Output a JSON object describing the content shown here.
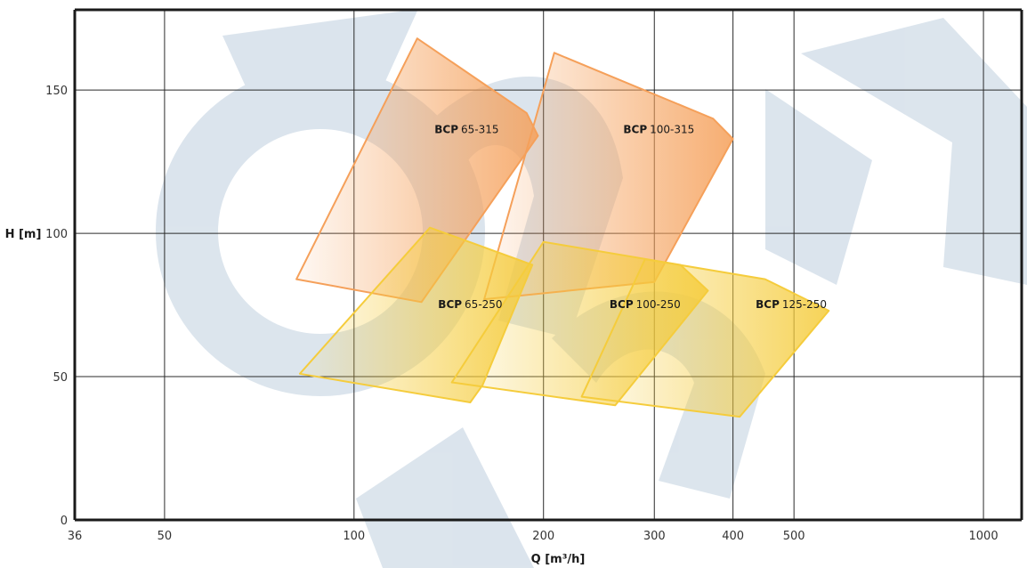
{
  "chart_data": {
    "type": "area",
    "title": "",
    "xlabel": "Q [m³/h]",
    "ylabel": "H [m]",
    "x_scale": "log",
    "xlim": [
      36,
      1150
    ],
    "ylim": [
      0,
      178
    ],
    "x_ticks": [
      36,
      50,
      100,
      200,
      300,
      400,
      500,
      1000
    ],
    "y_ticks": [
      0,
      50,
      100,
      150
    ],
    "grid": true,
    "series": [
      {
        "name": "BCP 65-315",
        "brand": "BCP",
        "model": "65-315",
        "color": "#f5a05a",
        "label_at": [
          151,
          135
        ],
        "polygon": [
          [
            81,
            84
          ],
          [
            126,
            168
          ],
          [
            188,
            142
          ],
          [
            196,
            134
          ],
          [
            128,
            76
          ]
        ]
      },
      {
        "name": "BCP100-315",
        "brand": "BCP",
        "model": "100-315",
        "color": "#f5a05a",
        "label_at": [
          305,
          135
        ],
        "polygon": [
          [
            161,
            77
          ],
          [
            208,
            163
          ],
          [
            372,
            140
          ],
          [
            400,
            133
          ],
          [
            300,
            83
          ]
        ]
      },
      {
        "name": "BCP 65-250",
        "brand": "BCP",
        "model": "65-250",
        "color": "#f5cc3c",
        "label_at": [
          153,
          74
        ],
        "polygon": [
          [
            82,
            51
          ],
          [
            132,
            102
          ],
          [
            192,
            89
          ],
          [
            160,
            47
          ],
          [
            153,
            41
          ]
        ]
      },
      {
        "name": "BCP100-250",
        "brand": "BCP",
        "model": "100-250",
        "color": "#f5cc3c",
        "label_at": [
          290,
          74
        ],
        "polygon": [
          [
            143,
            48
          ],
          [
            200,
            97
          ],
          [
            330,
            89
          ],
          [
            365,
            80
          ],
          [
            260,
            40
          ]
        ]
      },
      {
        "name": "BCP125-250",
        "brand": "BCP",
        "model": "125-250",
        "color": "#f5cc3c",
        "label_at": [
          495,
          74
        ],
        "polygon": [
          [
            230,
            43
          ],
          [
            290,
            91
          ],
          [
            450,
            84
          ],
          [
            568,
            73
          ],
          [
            410,
            36
          ]
        ]
      }
    ]
  },
  "watermark": {
    "description_color": "#cfdbe6",
    "type": "logo"
  }
}
